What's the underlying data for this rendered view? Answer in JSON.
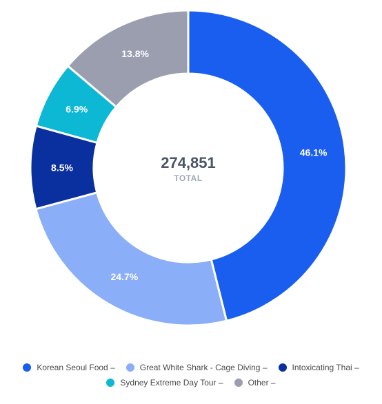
{
  "chart_data": {
    "type": "pie",
    "donut": true,
    "center": {
      "value": "274,851",
      "label": "TOTAL"
    },
    "slices": [
      {
        "name": "Korean Seoul Food",
        "percent": 46.1,
        "label": "46.1%",
        "color": "#1a5ef0"
      },
      {
        "name": "Great White Shark - Cage Diving",
        "percent": 24.7,
        "label": "24.7%",
        "color": "#8aaef8"
      },
      {
        "name": "Intoxicating Thai",
        "percent": 8.5,
        "label": "8.5%",
        "color": "#0a2f9e"
      },
      {
        "name": "Sydney Extreme Day Tour",
        "percent": 6.9,
        "label": "6.9%",
        "color": "#0cb8d4"
      },
      {
        "name": "Other",
        "percent": 13.8,
        "label": "13.8%",
        "color": "#9a9eaf"
      }
    ],
    "legend": {
      "placement": "bottom",
      "items": [
        "Korean Seoul Food –",
        "Great White Shark - Cage Diving –",
        "Intoxicating Thai –",
        "Sydney Extreme Day Tour –",
        "Other –"
      ]
    }
  }
}
